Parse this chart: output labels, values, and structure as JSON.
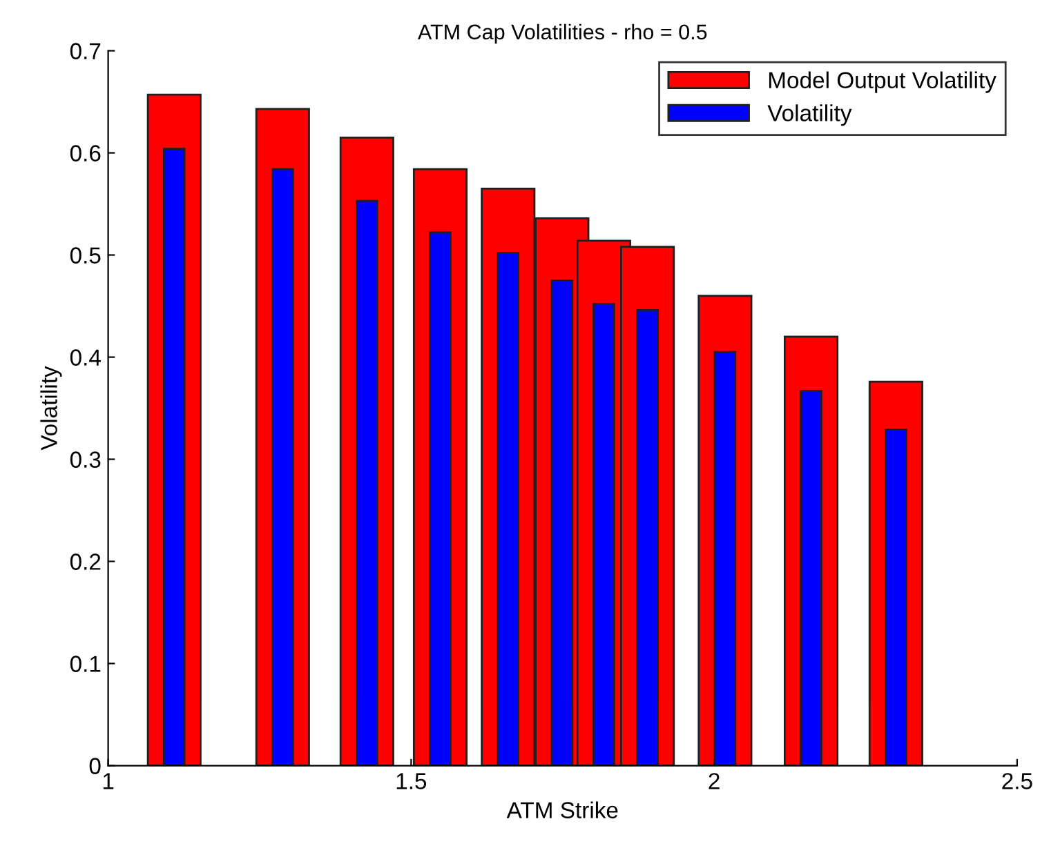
{
  "chart_data": {
    "type": "bar",
    "title": "ATM Cap Volatilities - rho = 0.5",
    "xlabel": "ATM Strike",
    "ylabel": "Volatility",
    "x": [
      1.109,
      1.288,
      1.427,
      1.548,
      1.66,
      1.749,
      1.818,
      1.89,
      2.018,
      2.16,
      2.3
    ],
    "series": [
      {
        "name": "Model Output Volatility",
        "color": "#ff0000",
        "values": [
          0.657,
          0.643,
          0.615,
          0.584,
          0.565,
          0.536,
          0.514,
          0.508,
          0.46,
          0.42,
          0.376
        ]
      },
      {
        "name": "Volatility",
        "color": "#0000ff",
        "values": [
          0.604,
          0.584,
          0.553,
          0.522,
          0.502,
          0.475,
          0.452,
          0.446,
          0.405,
          0.367,
          0.329
        ]
      }
    ],
    "xlim": [
      1,
      2.5
    ],
    "xticks": [
      1,
      1.5,
      2,
      2.5
    ],
    "ylim": [
      0,
      0.7
    ],
    "yticks": [
      0,
      0.1,
      0.2,
      0.3,
      0.4,
      0.5,
      0.6,
      0.7
    ],
    "legend": "top right",
    "grid": false
  }
}
